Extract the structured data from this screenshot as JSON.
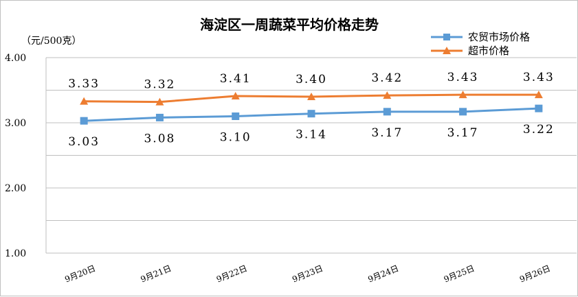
{
  "chart_data": {
    "type": "line",
    "title": "海淀区一周蔬菜平均价格走势",
    "ylabel": "（元/500克）",
    "categories": [
      "9月20日",
      "9月21日",
      "9月22日",
      "9月23日",
      "9月24日",
      "9月25日",
      "9月26日"
    ],
    "ylim": [
      1.0,
      4.0
    ],
    "yticks": [
      "4.00",
      "3.00",
      "2.00",
      "1.00"
    ],
    "ytick_values": [
      4.0,
      3.0,
      2.0,
      1.0
    ],
    "grid": true,
    "legend_position": "top-right",
    "series": [
      {
        "name": "农贸市场价格",
        "color": "#5b9bd5",
        "marker": "square",
        "label_position": "below",
        "values": [
          3.03,
          3.08,
          3.1,
          3.14,
          3.17,
          3.17,
          3.22
        ],
        "labels": [
          "3.03",
          "3.08",
          "3.10",
          "3.14",
          "3.17",
          "3.17",
          "3.22"
        ]
      },
      {
        "name": "超市价格",
        "color": "#ed7d31",
        "marker": "triangle",
        "label_position": "above",
        "values": [
          3.33,
          3.32,
          3.41,
          3.4,
          3.42,
          3.43,
          3.43
        ],
        "labels": [
          "3.33",
          "3.32",
          "3.41",
          "3.40",
          "3.42",
          "3.43",
          "3.43"
        ]
      }
    ]
  }
}
